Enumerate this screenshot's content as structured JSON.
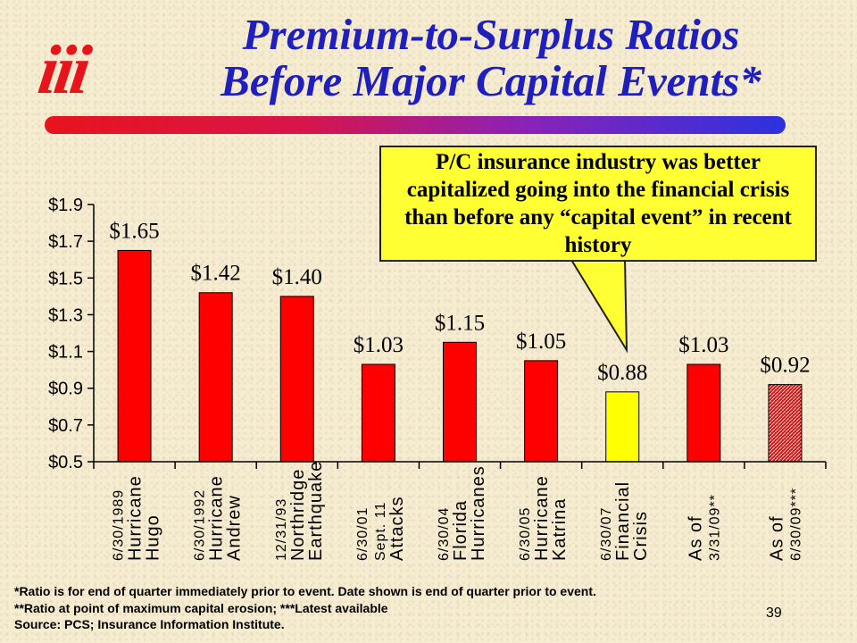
{
  "logo": {
    "text": "iii"
  },
  "title": {
    "line1": "Premium-to-Surplus Ratios",
    "line2": "Before Major Capital Events*"
  },
  "callout": {
    "text": "P/C insurance industry was better capitalized going into the financial crisis than before any “capital event” in recent history",
    "color": "#ffff33"
  },
  "chart_data": {
    "type": "bar",
    "categories": [
      [
        "6/30/1989",
        "Hurricane",
        "Hugo"
      ],
      [
        "6/30/1992",
        "Hurricane",
        "Andrew"
      ],
      [
        "12/31/93",
        "Northridge",
        "Earthquake"
      ],
      [
        "6/30/01",
        "Sept. 11",
        "Attacks"
      ],
      [
        "6/30/04",
        "Florida",
        "Hurricanes"
      ],
      [
        "6/30/05",
        "Hurricane",
        "Katrina"
      ],
      [
        "6/30/07",
        "Financial",
        "Crisis"
      ],
      [
        "As of",
        "3/31/09**"
      ],
      [
        "As of",
        "6/30/09***"
      ]
    ],
    "values": [
      1.65,
      1.42,
      1.4,
      1.03,
      1.15,
      1.05,
      0.88,
      1.03,
      0.92
    ],
    "data_labels": [
      "$1.65",
      "$1.42",
      "$1.40",
      "$1.03",
      "$1.15",
      "$1.05",
      "$0.88",
      "$1.03",
      "$0.92"
    ],
    "bar_colors": [
      "#ff0000",
      "#ff0000",
      "#ff0000",
      "#ff0000",
      "#ff0000",
      "#ff0000",
      "#ffff00",
      "#ff0000",
      "hatched-red"
    ],
    "ylim": [
      0.5,
      1.9
    ],
    "yticks": [
      "$0.5",
      "$0.7",
      "$0.9",
      "$1.1",
      "$1.3",
      "$1.5",
      "$1.7",
      "$1.9"
    ],
    "ytick_values": [
      0.5,
      0.7,
      0.9,
      1.1,
      1.3,
      1.5,
      1.7,
      1.9
    ],
    "grid": false,
    "xlabel": "",
    "ylabel": ""
  },
  "footnotes": {
    "line1": "*Ratio is for end of quarter immediately prior to event. Date shown is end of quarter prior to event.",
    "line2": "**Ratio at point of maximum capital erosion; ***Latest available",
    "line3": "Source: PCS; Insurance Information Institute."
  },
  "page_number": "39",
  "colors": {
    "title": "#1f1fc0",
    "accent_red": "#e8141c",
    "bar_red": "#ff0000",
    "bar_yellow": "#ffff00",
    "background": "#f6ecd2"
  }
}
